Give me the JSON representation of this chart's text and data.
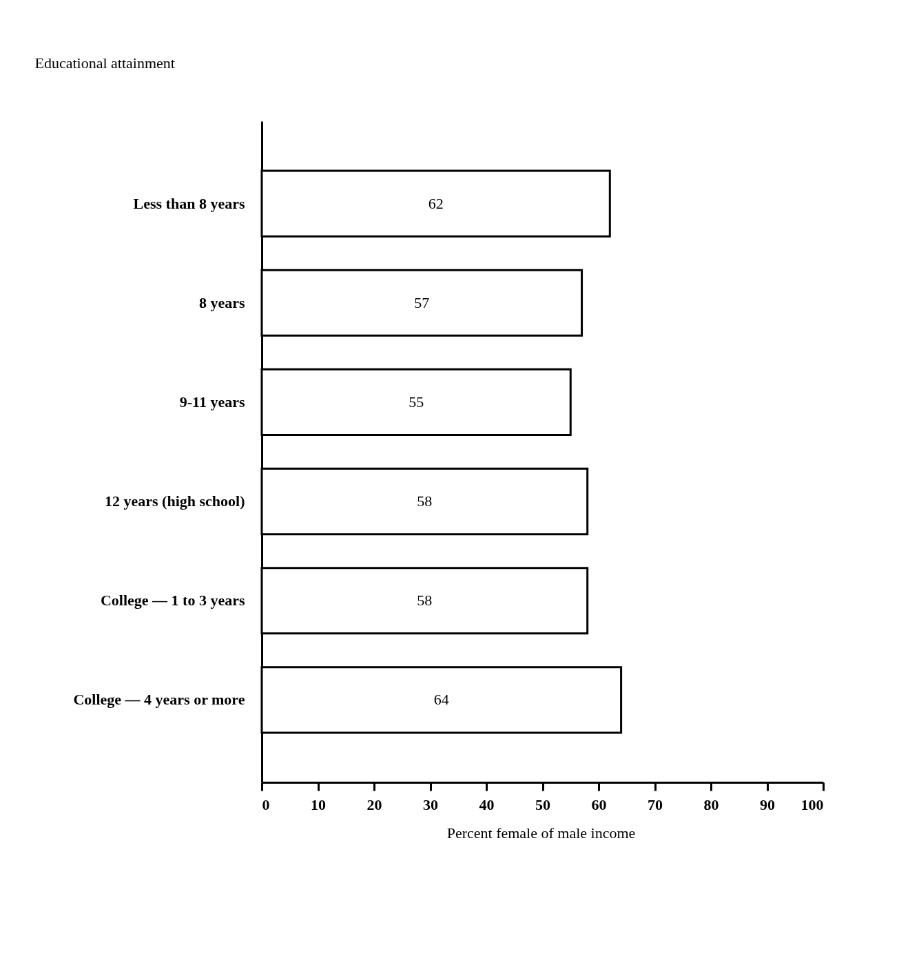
{
  "chart_data": {
    "type": "bar",
    "orientation": "horizontal",
    "xlabel": "Percent female of male income",
    "ylabel": "Educational attainment",
    "categories": [
      "Less than 8 years",
      "8 years",
      "9-11 years",
      "12 years (high school)",
      "College — 1 to 3 years",
      "College — 4 years or more"
    ],
    "values": [
      62,
      57,
      55,
      58,
      58,
      64
    ],
    "color": "#ffffff",
    "data_labels": true,
    "xlim": [
      0,
      100
    ],
    "xticks": [
      0,
      10,
      20,
      30,
      40,
      50,
      60,
      70,
      80,
      90,
      100
    ],
    "grid": false
  }
}
